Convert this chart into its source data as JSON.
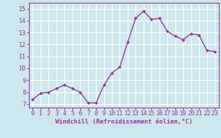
{
  "x": [
    0,
    1,
    2,
    3,
    4,
    5,
    6,
    7,
    8,
    9,
    10,
    11,
    12,
    13,
    14,
    15,
    16,
    17,
    18,
    19,
    20,
    21,
    22,
    23
  ],
  "y": [
    7.4,
    7.9,
    8.0,
    8.3,
    8.6,
    8.3,
    8.0,
    7.1,
    7.1,
    8.6,
    9.6,
    10.1,
    12.2,
    14.2,
    14.8,
    14.1,
    14.2,
    13.1,
    12.7,
    12.4,
    12.9,
    12.8,
    11.5,
    11.4
  ],
  "line_color": "#993399",
  "marker": "D",
  "marker_size": 2.0,
  "bg_color": "#cce8ed",
  "grid_color": "#ffffff",
  "xlabel": "Windchill (Refroidissement éolien,°C)",
  "xlabel_fontsize": 6.5,
  "ylabel_ticks": [
    7,
    8,
    9,
    10,
    11,
    12,
    13,
    14,
    15
  ],
  "xlim": [
    -0.5,
    23.5
  ],
  "ylim": [
    6.7,
    15.5
  ],
  "tick_label_fontsize": 6.5,
  "line_width": 1.0
}
